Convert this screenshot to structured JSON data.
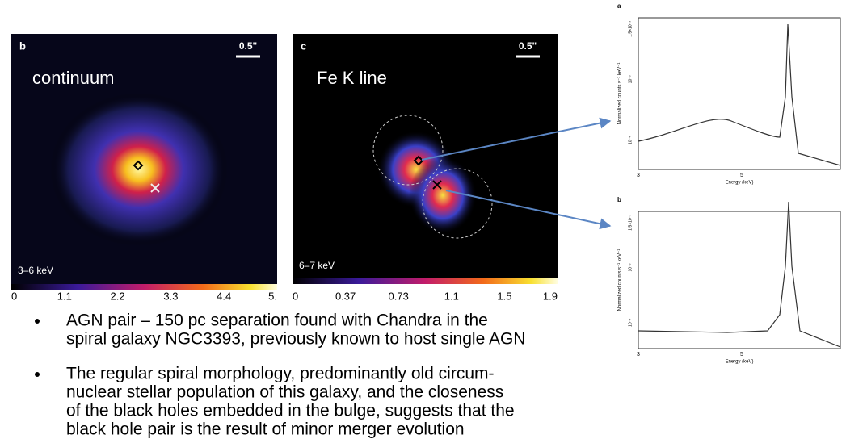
{
  "panels": [
    {
      "label": "b",
      "scale": "0.5\"",
      "title": "continuum",
      "band": "3–6 keV",
      "colorbar": [
        "0",
        "1.1",
        "2.2",
        "3.3",
        "4.4",
        "5."
      ]
    },
    {
      "label": "c",
      "scale": "0.5\"",
      "title": "Fe K line",
      "band": "6–7 keV",
      "colorbar": [
        "0",
        "0.37",
        "0.73",
        "1.1",
        "1.5",
        "1.9"
      ]
    }
  ],
  "spectra": [
    {
      "label": "a",
      "ylabel": "Normalized counts s⁻¹ keV⁻¹",
      "xlabel": "Energy (keV)",
      "xticks": [
        "3",
        "5"
      ],
      "yticks": [
        "1.5×10⁻³",
        "10⁻³",
        "10⁻⁴"
      ]
    },
    {
      "label": "b",
      "ylabel": "Normalized counts s⁻¹ keV⁻¹",
      "xlabel": "Energy (keV)",
      "xticks": [
        "3",
        "5"
      ],
      "yticks": [
        "1.5×10⁻³",
        "10⁻³",
        "10⁻⁴"
      ]
    }
  ],
  "bullets": [
    [
      "AGN pair – 150 pc separation found with Chandra in the",
      "spiral galaxy NGC3393, previously known to host single AGN"
    ],
    [
      "The regular spiral morphology, predominantly old circum-",
      "nuclear stellar population of this galaxy, and the closeness",
      "of the black holes embedded in the bulge, suggests that the",
      "black hole pair is the result of minor merger evolution"
    ]
  ]
}
